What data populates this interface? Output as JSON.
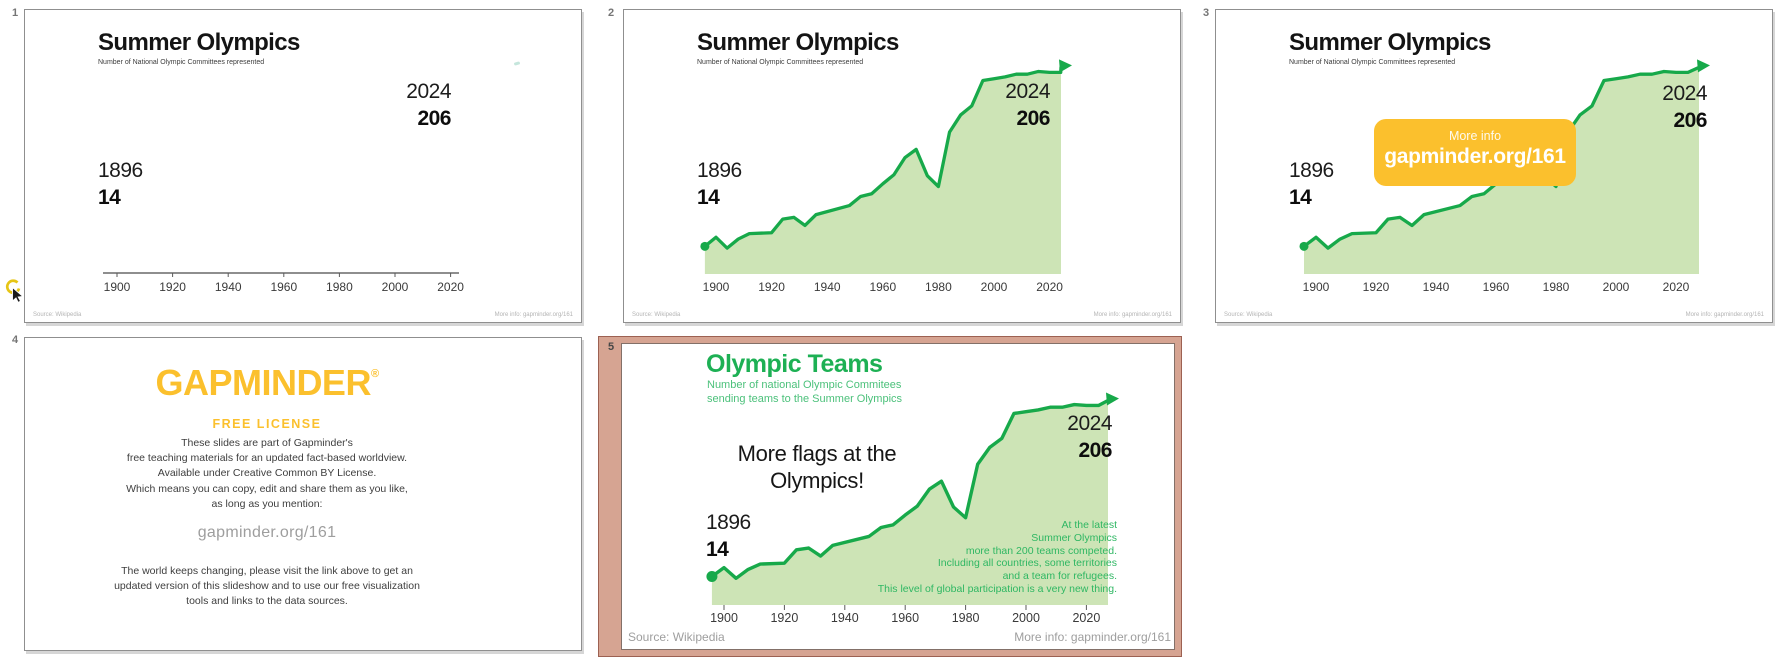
{
  "slides": [
    {
      "number": "1",
      "title": "Summer Olympics",
      "subtitle": "Number of National Olympic Committees represented",
      "end_year": "2024",
      "end_value": "206",
      "start_year": "1896",
      "start_value": "14",
      "source": "Source: Wikipedia",
      "more_info": "More info: gapminder.org/161"
    },
    {
      "number": "2",
      "title": "Summer Olympics",
      "subtitle": "Number of National Olympic Committees represented",
      "end_year": "2024",
      "end_value": "206",
      "start_year": "1896",
      "start_value": "14",
      "source": "Source: Wikipedia",
      "more_info": "More info: gapminder.org/161"
    },
    {
      "number": "3",
      "title": "Summer Olympics",
      "subtitle": "Number of National Olympic Committees represented",
      "end_year": "2024",
      "end_value": "206",
      "start_year": "1896",
      "start_value": "14",
      "source": "Source: Wikipedia",
      "more_info": "More info: gapminder.org/161",
      "badge": {
        "title": "More info",
        "link": "gapminder.org/161"
      }
    },
    {
      "number": "4",
      "logo": "GAPMINDER",
      "trademark": "®",
      "license_heading": "FREE LICENSE",
      "license_lines": [
        "These slides are part of Gapminder's",
        "free teaching materials for an updated fact-based worldview.",
        "Available under Creative Common BY License.",
        "Which means you can copy, edit and share them as you like,",
        "as long as you mention:"
      ],
      "link": "gapminder.org/161",
      "closing_lines": [
        "The world keeps changing, please visit the link above to get an",
        "updated version of this slideshow and to use our free visualization",
        "tools and links to the data sources."
      ]
    },
    {
      "number": "5",
      "title": "Olympic Teams",
      "subtitle_lines": [
        "Number of national Olympic Commitees",
        "sending teams to the Summer Olympics"
      ],
      "headline_lines": [
        "More flags at the",
        "Olympics!"
      ],
      "end_year": "2024",
      "end_value": "206",
      "start_year": "1896",
      "start_value": "14",
      "annotation_lines": [
        "At the latest",
        "Summer Olympics",
        "more than 200 teams competed.",
        "Including all countries, some territories",
        "and a team for refugees.",
        "This level of global participation is a very new thing."
      ],
      "source": "Source: Wikipedia",
      "more_info": "More info: gapminder.org/161"
    }
  ],
  "chart_data": {
    "type": "area",
    "title": "Summer Olympics",
    "subtitle": "Number of National Olympic Committees represented",
    "x": [
      1896,
      1900,
      1904,
      1908,
      1912,
      1920,
      1924,
      1928,
      1932,
      1936,
      1948,
      1952,
      1956,
      1960,
      1964,
      1968,
      1972,
      1976,
      1980,
      1984,
      1988,
      1992,
      1996,
      2000,
      2004,
      2008,
      2012,
      2016,
      2020,
      2024
    ],
    "values": [
      14,
      24,
      12,
      22,
      28,
      29,
      44,
      46,
      37,
      49,
      59,
      69,
      72,
      83,
      93,
      112,
      121,
      92,
      80,
      140,
      159,
      169,
      197,
      199,
      201,
      204,
      204,
      207,
      206,
      206
    ],
    "xticks": [
      1900,
      1920,
      1940,
      1960,
      1980,
      2000,
      2020
    ],
    "xlabel": "",
    "ylabel": "Number of National Olympic Committees",
    "ylim": [
      0,
      230
    ],
    "grid": false,
    "legend": "none",
    "line_color": "#17a94a",
    "fill_color": "#cde4b6",
    "annotations": {
      "start": {
        "year": 1896,
        "value": 14
      },
      "end": {
        "year": 2024,
        "value": 206
      }
    }
  },
  "colors": {
    "accent_green": "#17a94a",
    "fill_green": "#cde4b6",
    "brand_yellow": "#fbc02d",
    "selection_frame": "#d6a492",
    "selection_border": "#9c6152",
    "slide5_title_green": "#1db054",
    "slide5_text_green": "#2fb763",
    "muted_gray": "#9e9e9e"
  }
}
